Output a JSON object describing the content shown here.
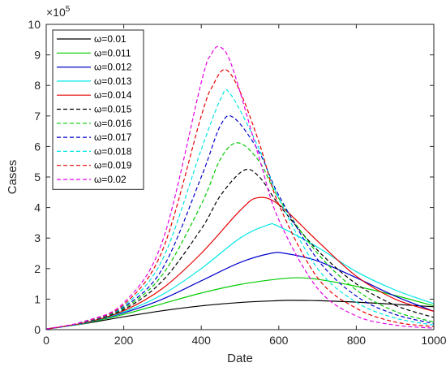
{
  "chart_data": {
    "type": "line",
    "xlabel": "Date",
    "ylabel": "Cases",
    "y_exponent_label": "×10",
    "y_exponent_power": "5",
    "xlim": [
      0,
      1000
    ],
    "ylim": [
      0,
      10
    ],
    "x_ticks": [
      0,
      200,
      400,
      600,
      800,
      1000
    ],
    "y_ticks": [
      0,
      1,
      2,
      3,
      4,
      5,
      6,
      7,
      8,
      9,
      10
    ],
    "x_tick_labels": [
      "0",
      "200",
      "400",
      "600",
      "800",
      "1000"
    ],
    "y_tick_labels": [
      "0",
      "1",
      "2",
      "3",
      "4",
      "5",
      "6",
      "7",
      "8",
      "9",
      "10"
    ],
    "grid": false,
    "box": true,
    "legend_position": "top-left",
    "series": [
      {
        "name": "ω=0.01",
        "color": "#000000",
        "dashed": false,
        "x": [
          0,
          100,
          200,
          300,
          400,
          500,
          600,
          630,
          700,
          800,
          900,
          1000
        ],
        "y": [
          0.02,
          0.2,
          0.42,
          0.62,
          0.78,
          0.89,
          0.95,
          0.96,
          0.95,
          0.9,
          0.83,
          0.75
        ]
      },
      {
        "name": "ω=0.011",
        "color": "#00cc00",
        "dashed": false,
        "x": [
          0,
          100,
          200,
          300,
          400,
          500,
          600,
          650,
          700,
          800,
          900,
          1000
        ],
        "y": [
          0.02,
          0.21,
          0.5,
          0.85,
          1.2,
          1.48,
          1.66,
          1.7,
          1.65,
          1.42,
          1.12,
          0.78
        ]
      },
      {
        "name": "ω=0.012",
        "color": "#0000cc",
        "dashed": false,
        "x": [
          0,
          100,
          200,
          300,
          400,
          500,
          580,
          620,
          700,
          800,
          900,
          1000
        ],
        "y": [
          0.02,
          0.22,
          0.55,
          1.0,
          1.6,
          2.2,
          2.5,
          2.49,
          2.25,
          1.7,
          1.1,
          0.6
        ]
      },
      {
        "name": "ω=0.013",
        "color": "#00e5e5",
        "dashed": false,
        "x": [
          0,
          100,
          200,
          300,
          400,
          500,
          570,
          600,
          700,
          800,
          900,
          1000
        ],
        "y": [
          0.02,
          0.22,
          0.58,
          1.15,
          2.0,
          3.0,
          3.42,
          3.38,
          2.7,
          1.9,
          1.3,
          0.85
        ]
      },
      {
        "name": "ω=0.014",
        "color": "#e60000",
        "dashed": false,
        "x": [
          0,
          100,
          200,
          300,
          400,
          500,
          545,
          600,
          700,
          800,
          900,
          1000
        ],
        "y": [
          0.02,
          0.23,
          0.62,
          1.35,
          2.5,
          3.9,
          4.32,
          4.1,
          2.9,
          1.75,
          1.0,
          0.6
        ]
      },
      {
        "name": "ω=0.015",
        "color": "#000000",
        "dashed": true,
        "x": [
          0,
          100,
          200,
          300,
          400,
          450,
          510,
          550,
          600,
          700,
          800,
          900,
          1000
        ],
        "y": [
          0.02,
          0.24,
          0.66,
          1.6,
          3.3,
          4.4,
          5.22,
          5.0,
          4.1,
          2.6,
          1.5,
          0.8,
          0.4
        ]
      },
      {
        "name": "ω=0.016",
        "color": "#00cc00",
        "dashed": true,
        "x": [
          0,
          100,
          200,
          300,
          400,
          450,
          495,
          550,
          600,
          700,
          800,
          900,
          1000
        ],
        "y": [
          0.02,
          0.25,
          0.7,
          1.8,
          4.1,
          5.6,
          6.12,
          5.5,
          4.3,
          2.5,
          1.3,
          0.6,
          0.25
        ]
      },
      {
        "name": "ω=0.017",
        "color": "#0000cc",
        "dashed": true,
        "x": [
          0,
          100,
          200,
          300,
          400,
          450,
          485,
          550,
          600,
          700,
          800,
          900,
          1000
        ],
        "y": [
          0.02,
          0.25,
          0.74,
          2.0,
          5.0,
          6.7,
          6.93,
          5.8,
          4.4,
          2.3,
          1.1,
          0.5,
          0.2
        ]
      },
      {
        "name": "ω=0.018",
        "color": "#00e5e5",
        "dashed": true,
        "x": [
          0,
          100,
          200,
          300,
          400,
          450,
          475,
          550,
          600,
          700,
          800,
          900,
          1000
        ],
        "y": [
          0.02,
          0.26,
          0.78,
          2.3,
          5.9,
          7.55,
          7.72,
          5.9,
          4.3,
          2.0,
          0.9,
          0.38,
          0.15
        ]
      },
      {
        "name": "ω=0.019",
        "color": "#e60000",
        "dashed": true,
        "x": [
          0,
          100,
          200,
          300,
          400,
          430,
          462,
          500,
          550,
          600,
          700,
          800,
          900,
          1000
        ],
        "y": [
          0.02,
          0.27,
          0.82,
          2.6,
          7.0,
          8.0,
          8.52,
          7.8,
          6.1,
          4.1,
          1.7,
          0.7,
          0.25,
          0.1
        ]
      },
      {
        "name": "ω=0.02",
        "color": "#e600e6",
        "dashed": true,
        "x": [
          0,
          100,
          200,
          300,
          400,
          425,
          448,
          480,
          550,
          600,
          700,
          800,
          900,
          1000
        ],
        "y": [
          0.02,
          0.28,
          0.88,
          2.9,
          8.1,
          9.0,
          9.26,
          8.6,
          5.6,
          3.6,
          1.35,
          0.45,
          0.15,
          0.05
        ]
      }
    ]
  }
}
